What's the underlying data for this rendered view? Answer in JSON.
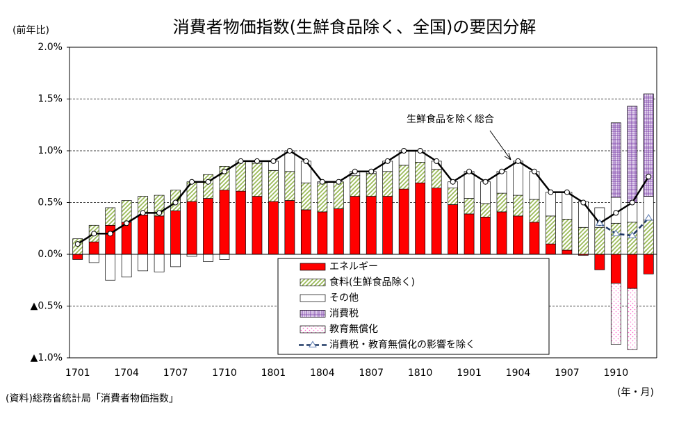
{
  "chart_data": {
    "type": "bar",
    "title": "消費者物価指数(生鮮食品除く、全国)の要因分解",
    "ylabel": "(前年比)",
    "xlabel": "(年・月)",
    "source": "(資料)総務省統計局「消費者物価指数」",
    "categories": [
      "1701",
      null,
      null,
      "1704",
      null,
      null,
      "1707",
      null,
      null,
      "1710",
      null,
      null,
      "1801",
      null,
      null,
      "1804",
      null,
      null,
      "1807",
      null,
      null,
      "1810",
      null,
      null,
      "1901",
      null,
      null,
      "1904",
      null,
      null,
      "1907",
      null,
      null,
      "1910",
      null,
      null
    ],
    "ylim": [
      -1.0,
      2.0
    ],
    "yticks": [
      {
        "value": -1.0,
        "label": "▲1.0%"
      },
      {
        "value": -0.5,
        "label": "▲0.5%"
      },
      {
        "value": 0,
        "label": "0.0%"
      },
      {
        "value": 0.5,
        "label": "0.5%"
      },
      {
        "value": 1.0,
        "label": "1.0%"
      },
      {
        "value": 1.5,
        "label": "1.5%"
      },
      {
        "value": 2.0,
        "label": "2.0%"
      }
    ],
    "grid": true,
    "series": [
      {
        "name": "エネルギー",
        "type": "bar",
        "pattern": "solid",
        "color": "#ff0000",
        "values": [
          -0.05,
          0.12,
          0.28,
          0.31,
          0.38,
          0.37,
          0.42,
          0.51,
          0.54,
          0.62,
          0.61,
          0.56,
          0.51,
          0.52,
          0.43,
          0.41,
          0.44,
          0.56,
          0.56,
          0.56,
          0.63,
          0.69,
          0.64,
          0.48,
          0.39,
          0.36,
          0.41,
          0.37,
          0.31,
          0.1,
          0.04,
          -0.01,
          -0.15,
          -0.28,
          -0.33,
          -0.19
        ]
      },
      {
        "name": "食料(生鮮食品除く)",
        "type": "bar",
        "pattern": "hatch",
        "color": "#9bbb59",
        "values": [
          0.15,
          0.16,
          0.17,
          0.21,
          0.18,
          0.2,
          0.2,
          0.19,
          0.23,
          0.23,
          0.29,
          0.32,
          0.3,
          0.28,
          0.26,
          0.28,
          0.26,
          0.2,
          0.22,
          0.24,
          0.23,
          0.2,
          0.18,
          0.16,
          0.15,
          0.13,
          0.18,
          0.2,
          0.22,
          0.27,
          0.3,
          0.26,
          0.26,
          0.3,
          0.31,
          0.33
        ]
      },
      {
        "name": "その他",
        "type": "bar",
        "pattern": "solid",
        "color": "#ffffff",
        "values": [
          0,
          -0.08,
          -0.25,
          -0.22,
          -0.16,
          -0.17,
          -0.12,
          -0.02,
          -0.07,
          -0.05,
          0,
          0.02,
          0.09,
          0.2,
          0.21,
          0.01,
          0,
          0.04,
          0.02,
          0.1,
          0.14,
          0.11,
          0.08,
          0.06,
          0.26,
          0.21,
          0.21,
          0.33,
          0.27,
          0.23,
          0.26,
          0.25,
          0.19,
          0.25,
          0.19,
          0.23
        ]
      },
      {
        "name": "消費税",
        "type": "bar",
        "pattern": "grid",
        "color": "#7030a0",
        "values": [
          null,
          null,
          null,
          null,
          null,
          null,
          null,
          null,
          null,
          null,
          null,
          null,
          null,
          null,
          null,
          null,
          null,
          null,
          null,
          null,
          null,
          null,
          null,
          null,
          null,
          null,
          null,
          null,
          null,
          null,
          null,
          null,
          null,
          0.72,
          0.93,
          0.99
        ]
      },
      {
        "name": "教育無償化",
        "type": "bar",
        "pattern": "dots",
        "color": "#ff66cc",
        "values": [
          null,
          null,
          null,
          null,
          null,
          null,
          null,
          null,
          null,
          null,
          null,
          null,
          null,
          null,
          null,
          null,
          null,
          null,
          null,
          null,
          null,
          null,
          null,
          null,
          null,
          null,
          null,
          null,
          null,
          null,
          null,
          null,
          null,
          -0.59,
          -0.59,
          null
        ]
      },
      {
        "name": "消費税・教育無償化の影響を除く",
        "type": "line",
        "color": "#1f3864",
        "values": [
          null,
          null,
          null,
          null,
          null,
          null,
          null,
          null,
          null,
          null,
          null,
          null,
          null,
          null,
          null,
          null,
          null,
          null,
          null,
          null,
          null,
          null,
          null,
          null,
          null,
          null,
          null,
          null,
          null,
          null,
          null,
          null,
          0.3,
          0.2,
          0.18,
          0.35
        ]
      }
    ],
    "total": {
      "name": "生鮮食品を除く総合",
      "color": "#000000",
      "values": [
        0.1,
        0.2,
        0.2,
        0.3,
        0.4,
        0.4,
        0.5,
        0.7,
        0.7,
        0.8,
        0.9,
        0.9,
        0.9,
        1.0,
        0.9,
        0.7,
        0.7,
        0.8,
        0.8,
        0.9,
        1.0,
        1.0,
        0.9,
        0.7,
        0.8,
        0.7,
        0.8,
        0.9,
        0.8,
        0.6,
        0.6,
        0.5,
        0.3,
        0.4,
        0.5,
        0.75
      ]
    }
  }
}
